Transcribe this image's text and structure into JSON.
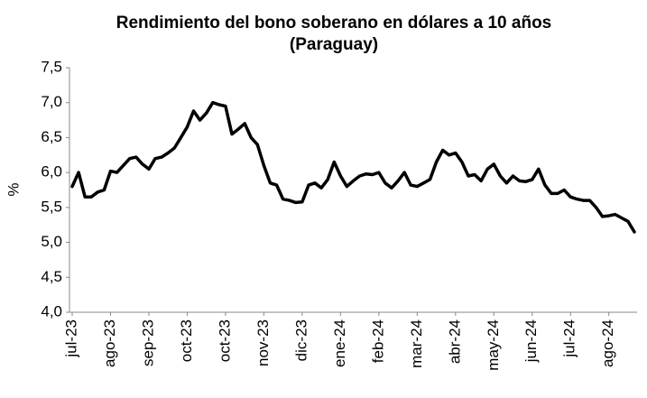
{
  "chart_data": {
    "type": "line",
    "title": [
      "Rendimiento del bono soberano en dólares a 10 años",
      "(Paraguay)"
    ],
    "y_label": "%",
    "color": "#000000",
    "grid": false,
    "categories": [
      "jul-23",
      null,
      null,
      null,
      null,
      null,
      "ago-23",
      null,
      null,
      null,
      null,
      null,
      "sep-23",
      null,
      null,
      null,
      null,
      null,
      "oct-23",
      null,
      null,
      null,
      null,
      null,
      "oct-23",
      null,
      null,
      null,
      null,
      null,
      "nov-23",
      null,
      null,
      null,
      null,
      null,
      "dic-23",
      null,
      null,
      null,
      null,
      null,
      "ene-24",
      null,
      null,
      null,
      null,
      null,
      "feb-24",
      null,
      null,
      null,
      null,
      null,
      "mar-24",
      null,
      null,
      null,
      null,
      null,
      "abr-24",
      null,
      null,
      null,
      null,
      null,
      "may-24",
      null,
      null,
      null,
      null,
      null,
      "jun-24",
      null,
      null,
      null,
      null,
      null,
      "jul-24",
      null,
      null,
      null,
      null,
      null,
      "ago-24",
      null,
      null,
      null,
      null
    ],
    "values": [
      5.8,
      6.0,
      5.65,
      5.65,
      5.72,
      5.75,
      6.02,
      6.0,
      6.1,
      6.2,
      6.22,
      6.12,
      6.05,
      6.2,
      6.22,
      6.28,
      6.35,
      6.5,
      6.65,
      6.88,
      6.75,
      6.85,
      7.0,
      6.97,
      6.95,
      6.55,
      6.62,
      6.7,
      6.5,
      6.4,
      6.1,
      5.85,
      5.82,
      5.62,
      5.6,
      5.57,
      5.58,
      5.82,
      5.85,
      5.78,
      5.9,
      6.15,
      5.95,
      5.8,
      5.88,
      5.95,
      5.98,
      5.97,
      6.0,
      5.85,
      5.78,
      5.88,
      6.0,
      5.82,
      5.8,
      5.85,
      5.9,
      6.15,
      6.32,
      6.25,
      6.28,
      6.15,
      5.95,
      5.97,
      5.88,
      6.05,
      6.12,
      5.95,
      5.85,
      5.95,
      5.88,
      5.87,
      5.9,
      6.05,
      5.82,
      5.7,
      5.7,
      5.75,
      5.65,
      5.62,
      5.6,
      5.6,
      5.5,
      5.37,
      5.38,
      5.4,
      5.35,
      5.3,
      5.15
    ],
    "ylim": [
      4.0,
      7.5
    ],
    "yticks": [
      {
        "value": 4.0,
        "label": "4,0"
      },
      {
        "value": 4.5,
        "label": "4,5"
      },
      {
        "value": 5.0,
        "label": "5,0"
      },
      {
        "value": 5.5,
        "label": "5,5"
      },
      {
        "value": 6.0,
        "label": "6,0"
      },
      {
        "value": 6.5,
        "label": "6,5"
      },
      {
        "value": 7.0,
        "label": "7,0"
      },
      {
        "value": 7.5,
        "label": "7,5"
      }
    ]
  }
}
